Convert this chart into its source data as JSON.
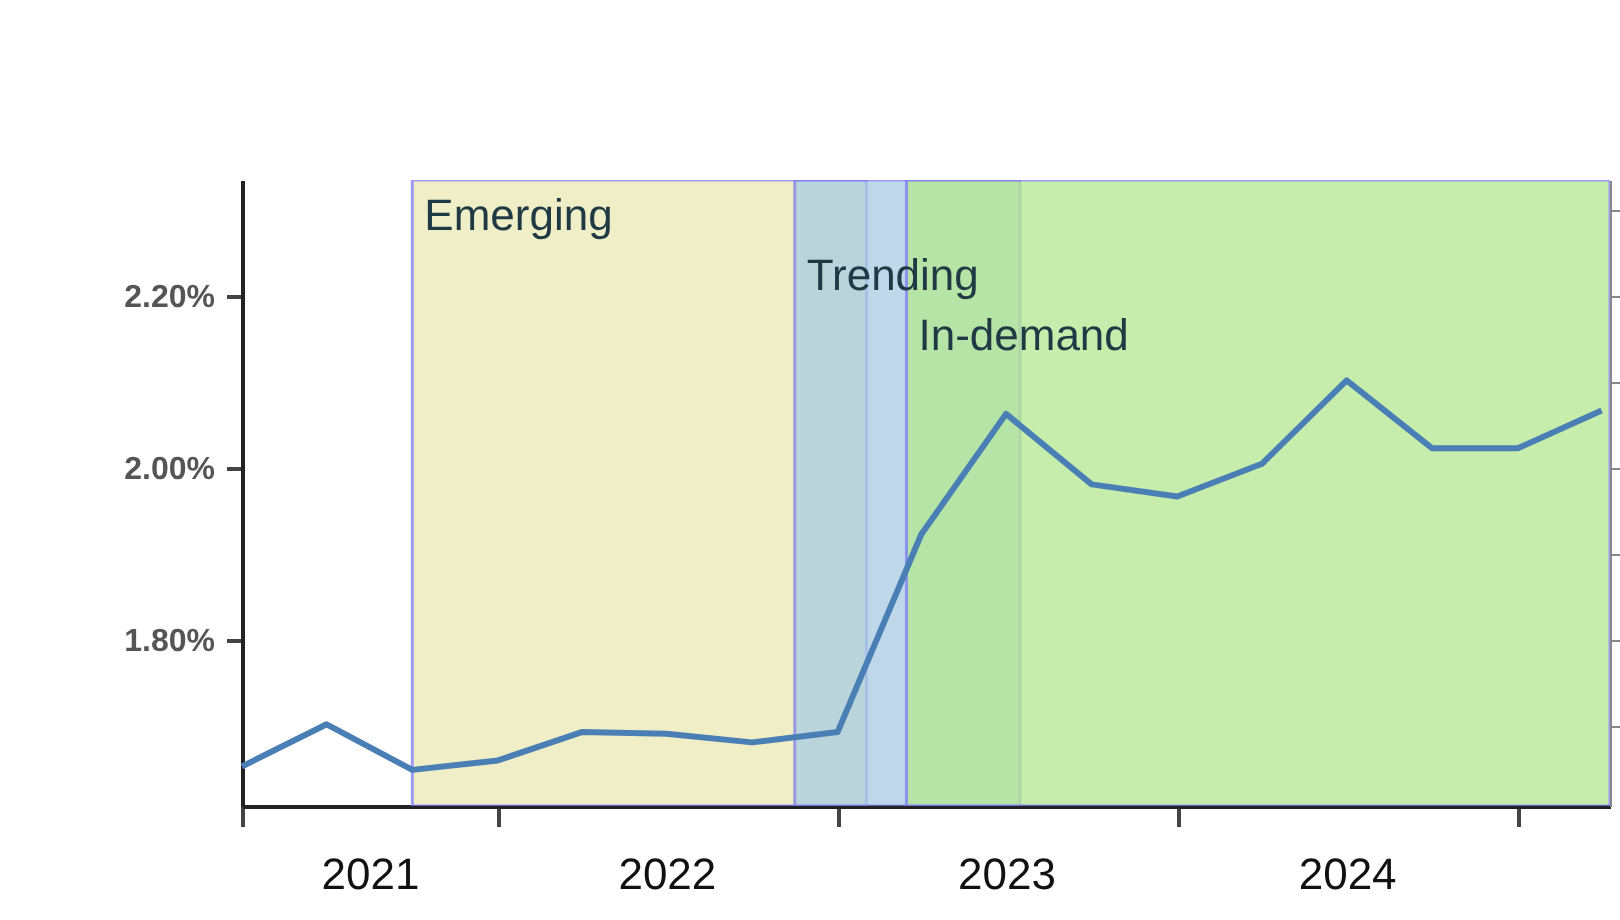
{
  "chart_data": {
    "type": "line",
    "x": [
      "2021-04-01",
      "2021-07-01",
      "2021-10-01",
      "2022-01-01",
      "2022-04-01",
      "2022-07-01",
      "2022-10-01",
      "2023-01-01",
      "2023-04-01",
      "2023-07-01",
      "2023-10-01",
      "2024-01-01",
      "2024-04-01",
      "2024-07-01",
      "2024-10-01",
      "2025-01-01",
      "2025-04-01"
    ],
    "series": [
      {
        "color": "#4a7fb5",
        "values": [
          1.653,
          1.702,
          1.649,
          1.66,
          1.693,
          1.691,
          1.681,
          1.693,
          1.923,
          2.063,
          1.981,
          1.967,
          2.005,
          2.102,
          2.023,
          2.023,
          2.067
        ]
      }
    ],
    "xlim": [
      "2021-04-01",
      "2025-04-10"
    ],
    "xticks": [
      {
        "value": "2021-04-01",
        "label": null
      },
      {
        "value": "2021-08-16",
        "label": "2021"
      },
      {
        "value": "2022-01-01",
        "label": null
      },
      {
        "value": "2022-07-01",
        "label": "2022"
      },
      {
        "value": "2023-01-01",
        "label": null
      },
      {
        "value": "2023-07-01",
        "label": "2023"
      },
      {
        "value": "2024-01-01",
        "label": null
      },
      {
        "value": "2024-07-01",
        "label": "2024"
      },
      {
        "value": "2025-01-01",
        "label": null
      }
    ],
    "ylim": [
      1.607,
      2.335
    ],
    "yticks": [
      {
        "value": 1.8,
        "label": "1.80%"
      },
      {
        "value": 2.0,
        "label": "2.00%"
      },
      {
        "value": 2.2,
        "label": "2.20%"
      }
    ],
    "bands": [
      {
        "axis": "x",
        "from": "2021-10-01",
        "to": "2023-02-01",
        "label": "Emerging",
        "color": "#ece9b5"
      },
      {
        "axis": "x",
        "from": "2022-11-16",
        "to": "2023-07-16",
        "label": "Trending",
        "color": "#a9cce3"
      },
      {
        "axis": "x",
        "from": "2023-03-16",
        "to": "2025-04-10",
        "label": "In-demand",
        "color": "#b3e890"
      }
    ],
    "grid": false
  }
}
